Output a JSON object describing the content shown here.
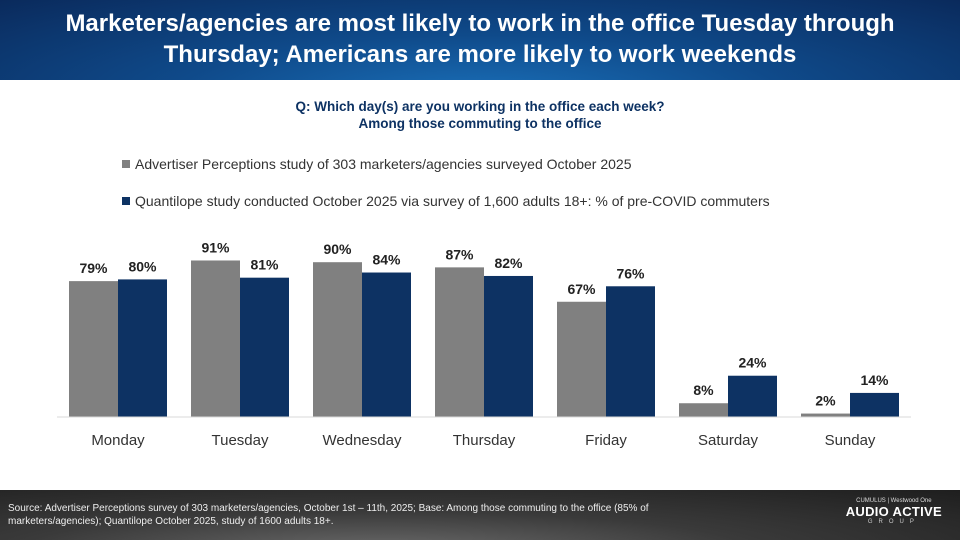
{
  "header": {
    "title": "Marketers/agencies are most likely to work in the office Tuesday through Thursday; Americans are more likely to work weekends"
  },
  "question": {
    "line1": "Q: Which day(s) are you working in the office each week?",
    "line2": "Among those commuting to the office"
  },
  "chart_data": {
    "type": "bar",
    "categories": [
      "Monday",
      "Tuesday",
      "Wednesday",
      "Thursday",
      "Friday",
      "Saturday",
      "Sunday"
    ],
    "series": [
      {
        "name": "Advertiser Perceptions study of 303 marketers/agencies surveyed October 2025",
        "color": "#808080",
        "values": [
          79,
          91,
          90,
          87,
          67,
          8,
          2
        ],
        "labels": [
          "79%",
          "91%",
          "90%",
          "87%",
          "67%",
          "8%",
          "2%"
        ]
      },
      {
        "name": "Quantilope study conducted October 2025 via survey of 1,600 adults 18+: % of pre-COVID commuters",
        "color": "#0d3263",
        "values": [
          80,
          81,
          84,
          82,
          76,
          24,
          14
        ],
        "labels": [
          "80%",
          "81%",
          "84%",
          "82%",
          "76%",
          "24%",
          "14%"
        ]
      }
    ],
    "ylim": [
      0,
      100
    ],
    "grid": false,
    "legend_position": "top-left"
  },
  "footer": {
    "source": "Source: Advertiser Perceptions survey of 303 marketers/agencies, October 1st – 11th, 2025; Base: Among those commuting to the office (85% of marketers/agencies); Quantilope October 2025, study of 1600 adults 18+.",
    "logo_top": "CUMULUS | Westwood One",
    "logo_main": "AUDIO ACTIVE",
    "logo_sub": "GROUP"
  }
}
